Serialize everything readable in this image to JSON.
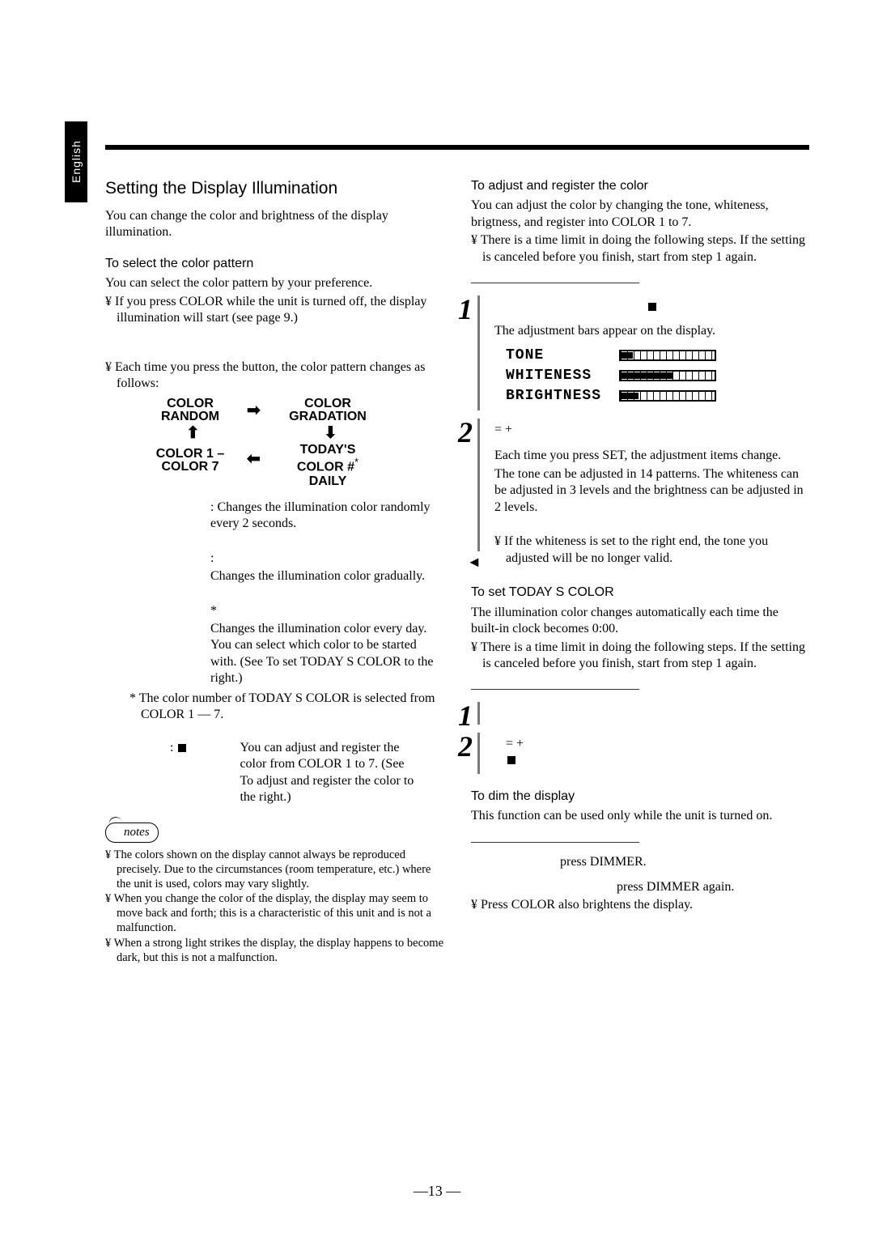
{
  "lang_tab": "English",
  "page_number": "—13 —",
  "left": {
    "title": "Setting the Display Illumination",
    "intro": "You can change the color and brightness of the display illumination.",
    "select_title": "To select the color pattern",
    "select_intro": "You can select the color pattern by your preference.",
    "select_bullet": "¥  If you press COLOR while the unit is turned off, the display illumination will start (see page 9.)",
    "each_time": "¥  Each time you press the button, the color pattern changes as follows:",
    "diagram": {
      "tl": "COLOR RANDOM",
      "tr": "COLOR GRADATION",
      "bl": "COLOR 1 – COLOR 7",
      "br1": "TODAY'S",
      "br2": "COLOR #",
      "br3": "DAILY",
      "star": "*"
    },
    "desc_random_lead": ": Changes the illumination color randomly every 2 seconds.",
    "desc_grad_lead": ":",
    "desc_grad_body": "Changes the illumination color gradually.",
    "desc_daily_star": "*",
    "desc_daily_body": "Changes the illumination color every day. You can select which color to be started with. (See  To set TODAY S COLOR  to the right.)",
    "footnote": "*  The color number of TODAY S COLOR is selected from COLOR 1 — 7.",
    "color_sel_lead": ": ",
    "color_sel_body": "You can adjust and register the color from COLOR 1 to 7. (See  To adjust and register the color  to the right.)",
    "notes_label": "notes",
    "note1": "¥  The colors shown on the display cannot always be reproduced precisely. Due to the circumstances (room temperature, etc.) where the unit is used, colors may vary slightly.",
    "note2": "¥  When you change the color of the display, the display may seem to move back and forth; this is a characteristic of this unit and is not a malfunction.",
    "note3": "¥  When a strong light strikes the display, the display happens to become dark, but this is not a malfunction."
  },
  "right": {
    "adjust_title": "To adjust and register the color",
    "adjust_intro": "You can adjust the color by changing the tone, whiteness, brigtness, and register into COLOR 1 to 7.",
    "adjust_bullet": "¥  There is a time limit in doing the following steps. If the setting is canceled before you finish, start from step 1 again.",
    "divider": "__________________________",
    "step1_line": "The adjustment bars appear on the display.",
    "lcd": {
      "tone": "TONE",
      "whiteness": "WHITENESS",
      "brightness": "BRIGHTNESS",
      "tone_fill_pct": 12,
      "whiteness_fill_pct": 55,
      "brightness_fill_pct": 18
    },
    "step2_eq": "=     +",
    "step2_body1": "Each time you press SET, the adjustment items change.",
    "step2_body2": "The tone can be adjusted in 14 patterns. The whiteness can be adjusted in 3 levels and the brightness can be adjusted in 2 levels.",
    "step2_note": "¥  If the whiteness is set to the right end, the tone you adjusted will be no longer valid.",
    "todays_title": "To set   TODAY S COLOR",
    "todays_intro": "The illumination color changes automatically each time the built-in clock becomes  0:00.",
    "todays_bullet": "¥  There is a time limit in doing the following steps. If the setting is canceled before you finish, start from step 1 again.",
    "step2b_eq": "=     +",
    "dim_title": "To dim the display",
    "dim_intro": "This function can be used only while the unit is turned on.",
    "dim_line1": "press DIMMER.",
    "dim_line2": "press DIMMER again.",
    "dim_bullet": "¥  Press COLOR also brightens the display."
  }
}
